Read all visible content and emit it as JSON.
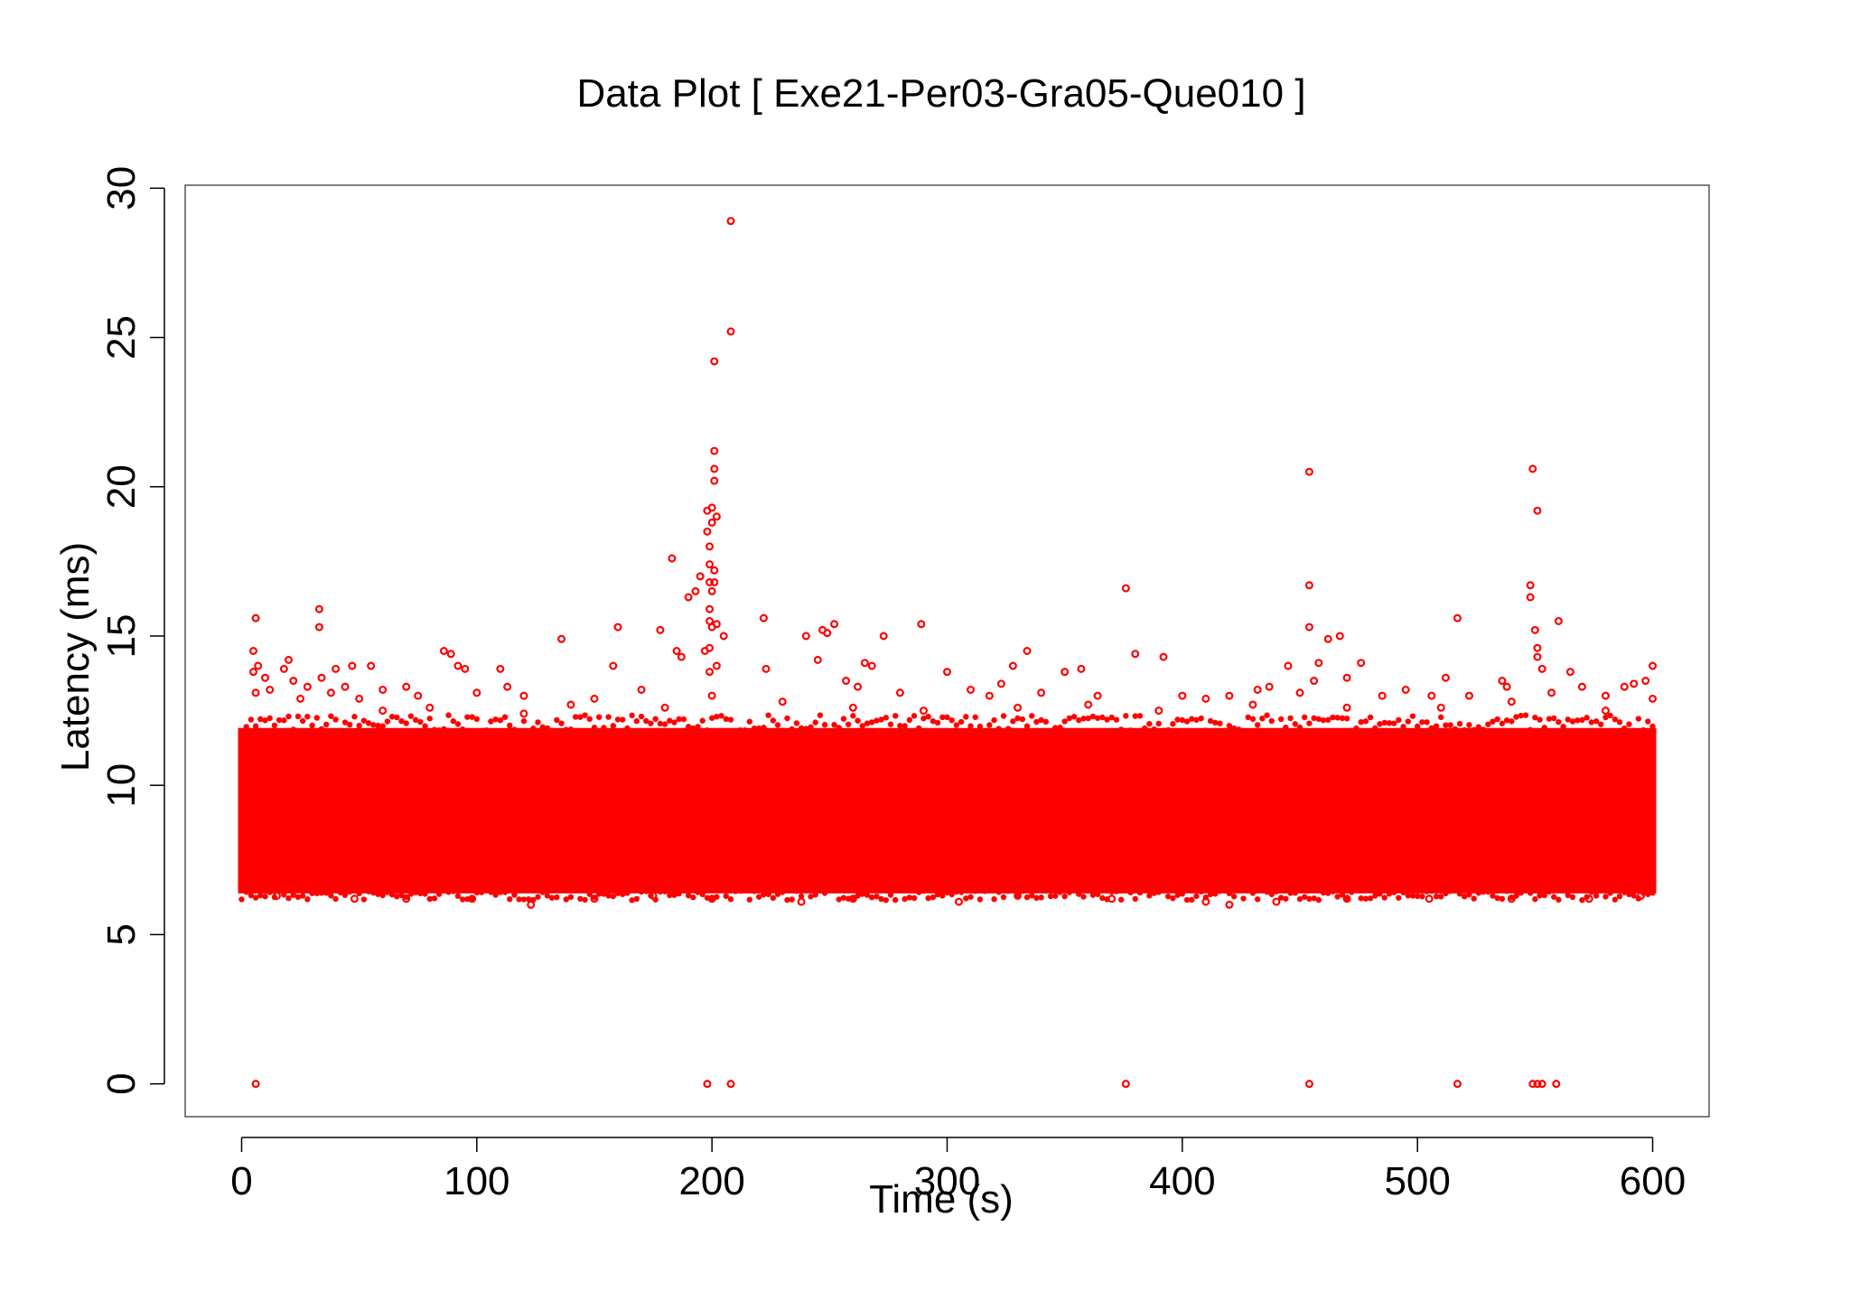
{
  "chart_data": {
    "type": "scatter",
    "title": "Data Plot [ Exe21-Per03-Gra05-Que010 ]",
    "xlabel": "Time (s)",
    "ylabel": "Latency (ms)",
    "xlim": [
      -24,
      624
    ],
    "ylim": [
      -1.1,
      30.1
    ],
    "xticks": [
      0,
      100,
      200,
      300,
      400,
      500,
      600
    ],
    "yticks": [
      0,
      5,
      10,
      15,
      20,
      25,
      30
    ],
    "grid": false,
    "legend": "none",
    "marker": "open-circle",
    "color": "#ff0000",
    "dense_band": {
      "x_range": [
        0,
        600
      ],
      "y_range": [
        6.5,
        11.8
      ]
    },
    "series": [
      {
        "points": [
          [
            5,
            13.8
          ],
          [
            5,
            14.5
          ],
          [
            6,
            15.6
          ],
          [
            6,
            13.1
          ],
          [
            7,
            14.0
          ],
          [
            10,
            13.6
          ],
          [
            12,
            13.2
          ],
          [
            18,
            13.9
          ],
          [
            20,
            14.2
          ],
          [
            22,
            13.5
          ],
          [
            25,
            12.9
          ],
          [
            28,
            13.3
          ],
          [
            33,
            15.9
          ],
          [
            33,
            15.3
          ],
          [
            34,
            13.6
          ],
          [
            38,
            13.1
          ],
          [
            40,
            13.9
          ],
          [
            44,
            13.3
          ],
          [
            47,
            14.0
          ],
          [
            50,
            12.9
          ],
          [
            55,
            14.0
          ],
          [
            60,
            13.2
          ],
          [
            70,
            13.3
          ],
          [
            75,
            13.0
          ],
          [
            86,
            14.5
          ],
          [
            89,
            14.4
          ],
          [
            92,
            14.0
          ],
          [
            95,
            13.9
          ],
          [
            100,
            13.1
          ],
          [
            110,
            13.9
          ],
          [
            113,
            13.3
          ],
          [
            120,
            13.0
          ],
          [
            136,
            14.9
          ],
          [
            150,
            12.9
          ],
          [
            158,
            14.0
          ],
          [
            160,
            15.3
          ],
          [
            170,
            13.2
          ],
          [
            178,
            15.2
          ],
          [
            183,
            17.6
          ],
          [
            185,
            14.5
          ],
          [
            187,
            14.3
          ],
          [
            190,
            16.3
          ],
          [
            193,
            16.5
          ],
          [
            195,
            17.0
          ],
          [
            197,
            14.5
          ],
          [
            198,
            19.2
          ],
          [
            198,
            18.5
          ],
          [
            199,
            18.0
          ],
          [
            199,
            17.4
          ],
          [
            199,
            16.8
          ],
          [
            199,
            15.9
          ],
          [
            199,
            15.5
          ],
          [
            199,
            14.6
          ],
          [
            199,
            13.8
          ],
          [
            200,
            13.0
          ],
          [
            200,
            19.3
          ],
          [
            200,
            18.8
          ],
          [
            200,
            16.5
          ],
          [
            200,
            15.3
          ],
          [
            201,
            21.2
          ],
          [
            201,
            20.6
          ],
          [
            201,
            20.2
          ],
          [
            201,
            17.2
          ],
          [
            201,
            16.8
          ],
          [
            201,
            24.2
          ],
          [
            202,
            19.0
          ],
          [
            202,
            15.4
          ],
          [
            202,
            14.0
          ],
          [
            205,
            15.0
          ],
          [
            208,
            28.9
          ],
          [
            208,
            25.2
          ],
          [
            222,
            15.6
          ],
          [
            223,
            13.9
          ],
          [
            240,
            15.0
          ],
          [
            245,
            14.2
          ],
          [
            247,
            15.2
          ],
          [
            249,
            15.1
          ],
          [
            252,
            15.4
          ],
          [
            257,
            13.5
          ],
          [
            262,
            13.3
          ],
          [
            265,
            14.1
          ],
          [
            268,
            14.0
          ],
          [
            273,
            15.0
          ],
          [
            280,
            13.1
          ],
          [
            289,
            15.4
          ],
          [
            300,
            13.8
          ],
          [
            310,
            13.2
          ],
          [
            318,
            13.0
          ],
          [
            323,
            13.4
          ],
          [
            328,
            14.0
          ],
          [
            334,
            14.5
          ],
          [
            340,
            13.1
          ],
          [
            350,
            13.8
          ],
          [
            357,
            13.9
          ],
          [
            364,
            13.0
          ],
          [
            376,
            16.6
          ],
          [
            380,
            14.4
          ],
          [
            392,
            14.3
          ],
          [
            400,
            13.0
          ],
          [
            410,
            12.9
          ],
          [
            420,
            13.0
          ],
          [
            432,
            13.2
          ],
          [
            437,
            13.3
          ],
          [
            445,
            14.0
          ],
          [
            450,
            13.1
          ],
          [
            454,
            20.5
          ],
          [
            454,
            16.7
          ],
          [
            454,
            15.3
          ],
          [
            456,
            13.5
          ],
          [
            458,
            14.1
          ],
          [
            462,
            14.9
          ],
          [
            467,
            15.0
          ],
          [
            470,
            13.6
          ],
          [
            476,
            14.1
          ],
          [
            485,
            13.0
          ],
          [
            495,
            13.2
          ],
          [
            506,
            13.0
          ],
          [
            512,
            13.6
          ],
          [
            517,
            15.6
          ],
          [
            522,
            13.0
          ],
          [
            536,
            13.5
          ],
          [
            538,
            13.3
          ],
          [
            548,
            16.7
          ],
          [
            548,
            16.3
          ],
          [
            549,
            20.6
          ],
          [
            550,
            15.2
          ],
          [
            551,
            14.6
          ],
          [
            551,
            14.3
          ],
          [
            551,
            19.2
          ],
          [
            553,
            13.9
          ],
          [
            557,
            13.1
          ],
          [
            560,
            15.5
          ],
          [
            565,
            13.8
          ],
          [
            570,
            13.3
          ],
          [
            580,
            13.0
          ],
          [
            588,
            13.3
          ],
          [
            592,
            13.4
          ],
          [
            597,
            13.5
          ],
          [
            600,
            14.0
          ],
          [
            600,
            12.9
          ],
          [
            60,
            12.5
          ],
          [
            80,
            12.6
          ],
          [
            120,
            12.4
          ],
          [
            140,
            12.7
          ],
          [
            180,
            12.6
          ],
          [
            230,
            12.8
          ],
          [
            260,
            12.6
          ],
          [
            290,
            12.5
          ],
          [
            330,
            12.6
          ],
          [
            360,
            12.7
          ],
          [
            390,
            12.5
          ],
          [
            430,
            12.7
          ],
          [
            470,
            12.6
          ],
          [
            510,
            12.6
          ],
          [
            540,
            12.8
          ],
          [
            580,
            12.5
          ],
          [
            15,
            6.3
          ],
          [
            48,
            6.2
          ],
          [
            70,
            6.2
          ],
          [
            98,
            6.2
          ],
          [
            123,
            6.0
          ],
          [
            150,
            6.2
          ],
          [
            175,
            6.3
          ],
          [
            200,
            6.2
          ],
          [
            238,
            6.1
          ],
          [
            260,
            6.2
          ],
          [
            305,
            6.1
          ],
          [
            330,
            6.3
          ],
          [
            370,
            6.2
          ],
          [
            410,
            6.1
          ],
          [
            420,
            6.0
          ],
          [
            440,
            6.1
          ],
          [
            470,
            6.2
          ],
          [
            505,
            6.2
          ],
          [
            540,
            6.2
          ],
          [
            573,
            6.2
          ],
          [
            595,
            6.3
          ],
          [
            6,
            0.0
          ],
          [
            198,
            0.0
          ],
          [
            208,
            0.0
          ],
          [
            376,
            0.0
          ],
          [
            454,
            0.0
          ],
          [
            517,
            0.0
          ],
          [
            549,
            0.0
          ],
          [
            551,
            0.0
          ],
          [
            553,
            0.0
          ],
          [
            559,
            0.0
          ]
        ]
      }
    ]
  }
}
